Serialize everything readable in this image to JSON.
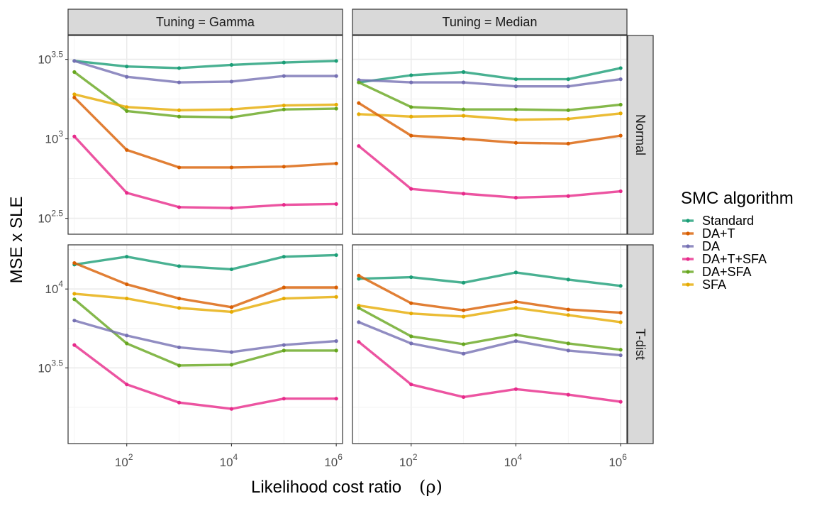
{
  "chart_data": {
    "type": "line",
    "xlabel": "Likelihood cost ratio",
    "xlabel_symbol": "ρ",
    "ylabel": "MSE x SLE",
    "x_scale": "log10",
    "y_scale": "log10",
    "x_values": [
      10,
      100,
      1000,
      10000,
      100000,
      1000000
    ],
    "x_ticks": [
      {
        "base": "10",
        "exp": "2",
        "value": 100
      },
      {
        "base": "10",
        "exp": "4",
        "value": 10000
      },
      {
        "base": "10",
        "exp": "6",
        "value": 1000000
      }
    ],
    "column_facets": [
      "Tuning = Gamma",
      "Tuning = Median"
    ],
    "row_facets": [
      "Normal",
      "T-dist"
    ],
    "legend": {
      "title": "SMC algorithm",
      "placement": "right",
      "entries": [
        {
          "name": "Standard",
          "color": "#1b9e77"
        },
        {
          "name": "DA+T",
          "color": "#d95f02"
        },
        {
          "name": "DA",
          "color": "#7570b3"
        },
        {
          "name": "DA+T+SFA",
          "color": "#e7298a"
        },
        {
          "name": "DA+SFA",
          "color": "#66a61e"
        },
        {
          "name": "SFA",
          "color": "#e6ab02"
        }
      ]
    },
    "rows": [
      {
        "facet": "Normal",
        "y_range_log10": [
          2.4,
          3.65
        ],
        "y_ticks": [
          {
            "base": "10",
            "exp": "2.5",
            "log10": 2.5,
            "show_exp": true
          },
          {
            "base": "10",
            "exp": "3",
            "log10": 3.0,
            "show_exp": true
          },
          {
            "base": "10",
            "exp": "3.5",
            "log10": 3.5,
            "show_exp": true
          }
        ],
        "panels": [
          {
            "facet": "Tuning = Gamma",
            "series": [
              {
                "name": "Standard",
                "log10_y": [
                  3.49,
                  3.455,
                  3.445,
                  3.465,
                  3.48,
                  3.49
                ]
              },
              {
                "name": "DA",
                "log10_y": [
                  3.49,
                  3.39,
                  3.355,
                  3.36,
                  3.395,
                  3.395
                ]
              },
              {
                "name": "DA+SFA",
                "log10_y": [
                  3.42,
                  3.175,
                  3.14,
                  3.135,
                  3.185,
                  3.19
                ]
              },
              {
                "name": "SFA",
                "log10_y": [
                  3.28,
                  3.2,
                  3.18,
                  3.185,
                  3.21,
                  3.215
                ]
              },
              {
                "name": "DA+T",
                "log10_y": [
                  3.26,
                  2.93,
                  2.82,
                  2.82,
                  2.825,
                  2.845
                ]
              },
              {
                "name": "DA+T+SFA",
                "log10_y": [
                  3.015,
                  2.66,
                  2.57,
                  2.565,
                  2.585,
                  2.59
                ]
              }
            ]
          },
          {
            "facet": "Tuning = Median",
            "series": [
              {
                "name": "Standard",
                "log10_y": [
                  3.355,
                  3.4,
                  3.42,
                  3.375,
                  3.375,
                  3.445
                ]
              },
              {
                "name": "DA",
                "log10_y": [
                  3.37,
                  3.355,
                  3.355,
                  3.33,
                  3.33,
                  3.375
                ]
              },
              {
                "name": "DA+SFA",
                "log10_y": [
                  3.355,
                  3.2,
                  3.185,
                  3.185,
                  3.18,
                  3.215
                ]
              },
              {
                "name": "SFA",
                "log10_y": [
                  3.155,
                  3.14,
                  3.145,
                  3.12,
                  3.125,
                  3.16
                ]
              },
              {
                "name": "DA+T",
                "log10_y": [
                  3.225,
                  3.02,
                  3.0,
                  2.975,
                  2.97,
                  3.02
                ]
              },
              {
                "name": "DA+T+SFA",
                "log10_y": [
                  2.955,
                  2.685,
                  2.655,
                  2.63,
                  2.64,
                  2.67
                ]
              }
            ]
          }
        ]
      },
      {
        "facet": "T-dist",
        "y_range_log10": [
          3.02,
          4.28
        ],
        "y_ticks": [
          {
            "base": "10",
            "exp": "3.5",
            "log10": 3.5,
            "show_exp": true
          },
          {
            "base": "10",
            "exp": "4",
            "log10": 4.0,
            "show_exp": true
          }
        ],
        "panels": [
          {
            "facet": "Tuning = Gamma",
            "series": [
              {
                "name": "Standard",
                "log10_y": [
                  4.155,
                  4.205,
                  4.145,
                  4.125,
                  4.205,
                  4.215
                ]
              },
              {
                "name": "DA+T",
                "log10_y": [
                  4.165,
                  4.03,
                  3.94,
                  3.885,
                  4.01,
                  4.01
                ]
              },
              {
                "name": "SFA",
                "log10_y": [
                  3.97,
                  3.94,
                  3.88,
                  3.855,
                  3.94,
                  3.95
                ]
              },
              {
                "name": "DA+SFA",
                "log10_y": [
                  3.935,
                  3.655,
                  3.515,
                  3.52,
                  3.61,
                  3.61
                ]
              },
              {
                "name": "DA",
                "log10_y": [
                  3.8,
                  3.705,
                  3.63,
                  3.6,
                  3.645,
                  3.67
                ]
              },
              {
                "name": "DA+T+SFA",
                "log10_y": [
                  3.645,
                  3.395,
                  3.28,
                  3.24,
                  3.305,
                  3.305
                ]
              }
            ]
          },
          {
            "facet": "Tuning = Median",
            "series": [
              {
                "name": "Standard",
                "log10_y": [
                  4.065,
                  4.075,
                  4.04,
                  4.105,
                  4.06,
                  4.02
                ]
              },
              {
                "name": "DA+T",
                "log10_y": [
                  4.085,
                  3.91,
                  3.865,
                  3.92,
                  3.87,
                  3.85
                ]
              },
              {
                "name": "SFA",
                "log10_y": [
                  3.895,
                  3.845,
                  3.825,
                  3.88,
                  3.835,
                  3.79
                ]
              },
              {
                "name": "DA+SFA",
                "log10_y": [
                  3.88,
                  3.7,
                  3.65,
                  3.71,
                  3.655,
                  3.615
                ]
              },
              {
                "name": "DA",
                "log10_y": [
                  3.79,
                  3.655,
                  3.59,
                  3.67,
                  3.61,
                  3.58
                ]
              },
              {
                "name": "DA+T+SFA",
                "log10_y": [
                  3.665,
                  3.395,
                  3.315,
                  3.365,
                  3.33,
                  3.285
                ]
              }
            ]
          }
        ]
      }
    ]
  }
}
